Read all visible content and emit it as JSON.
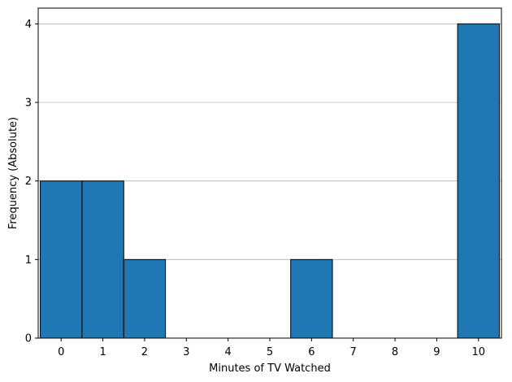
{
  "chart_data": {
    "type": "bar",
    "title": "",
    "xlabel": "Minutes of TV Watched",
    "ylabel": "Frequency (Absolute)",
    "categories": [
      "0",
      "1",
      "2",
      "3",
      "4",
      "5",
      "6",
      "7",
      "8",
      "9",
      "10"
    ],
    "values": [
      2,
      2,
      1,
      0,
      0,
      0,
      1,
      0,
      0,
      0,
      4
    ],
    "xlim": [
      -0.55,
      10.55
    ],
    "ylim": [
      0,
      4.2
    ],
    "yticks": [
      "0",
      "1",
      "2",
      "3",
      "4"
    ],
    "grid": "y-axis only",
    "legend": "none",
    "colors": {
      "bar_fill": "#1f77b4",
      "bar_edge": "#000000",
      "grid": "#b0b0b0",
      "axis": "#000000"
    }
  }
}
